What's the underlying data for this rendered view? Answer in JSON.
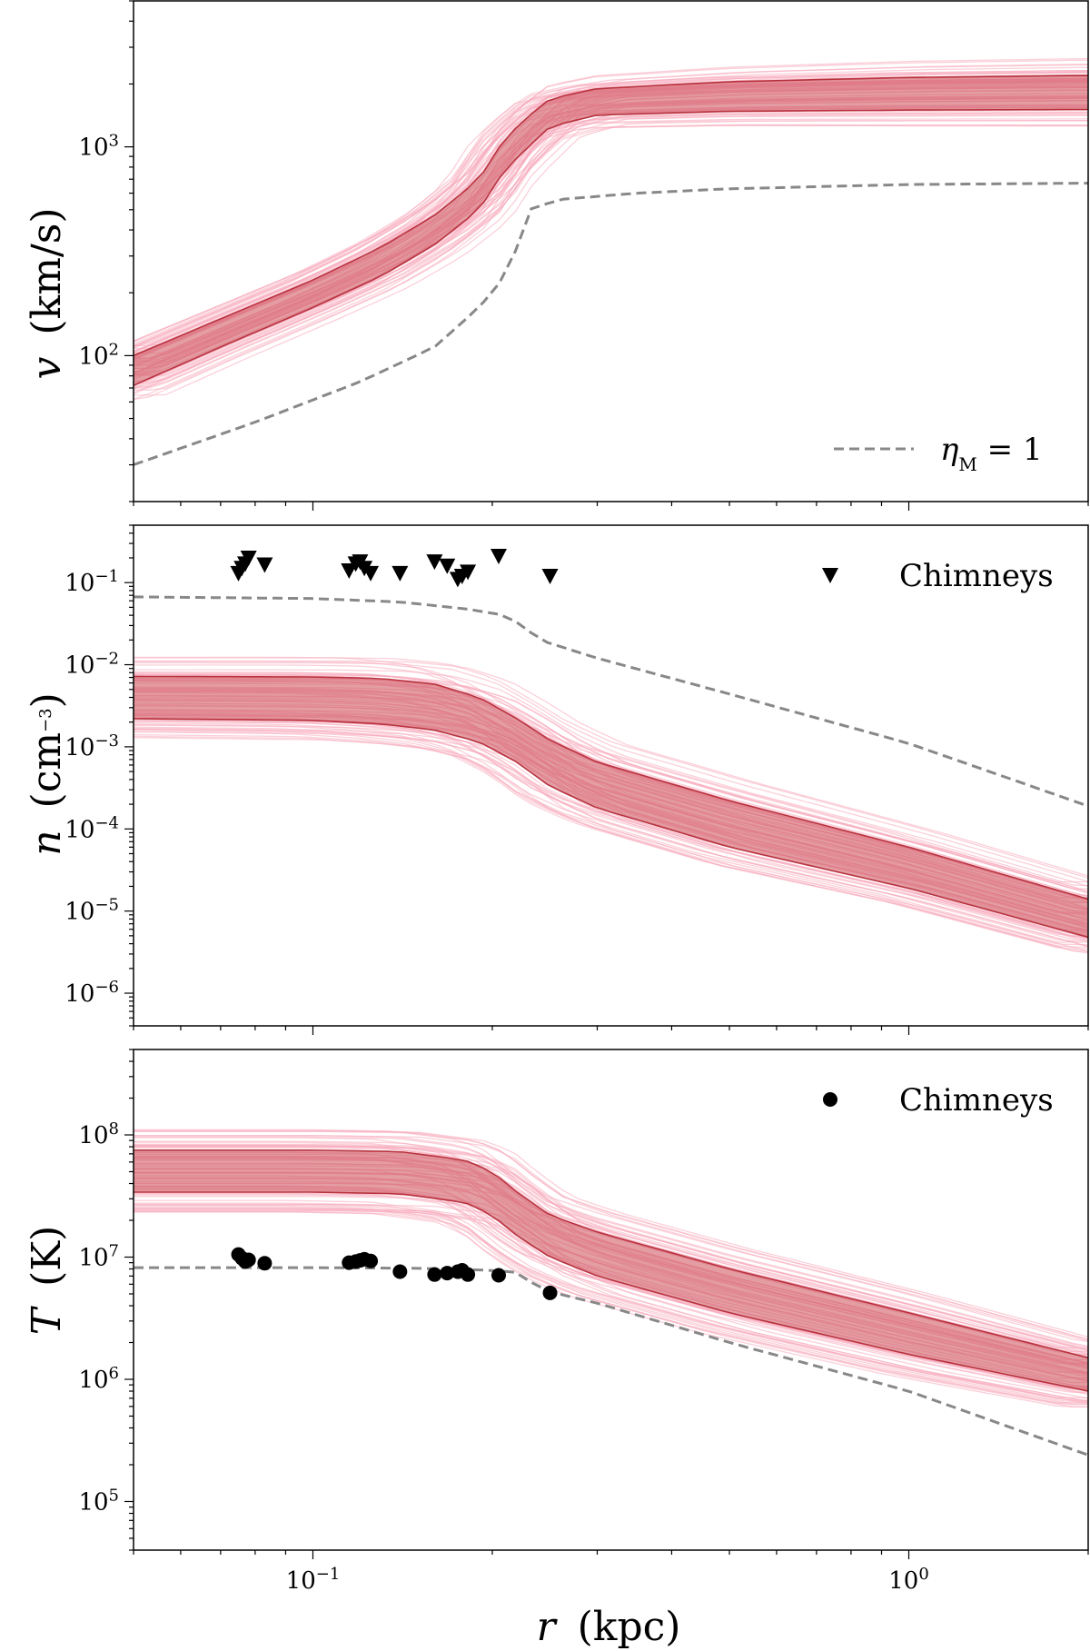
{
  "chart_data": [
    {
      "type": "line",
      "panel": "velocity",
      "ylabel_var": "v",
      "ylabel_unit": "(km/s)",
      "xlim": [
        0.05,
        2.0
      ],
      "ylim": [
        20,
        5000
      ],
      "yscale": "log",
      "xscale": "log",
      "yticks": [
        {
          "value": 100,
          "base": "10",
          "exp": "2"
        },
        {
          "value": 1000,
          "base": "10",
          "exp": "3"
        }
      ],
      "band_color": "#c9525a",
      "sample_color": "#f5a3b5",
      "band_x": [
        0.05,
        0.07,
        0.1,
        0.13,
        0.16,
        0.19,
        0.21,
        0.23,
        0.25,
        0.3,
        0.5,
        1.0,
        2.0
      ],
      "band_lower": [
        72,
        110,
        170,
        240,
        340,
        500,
        780,
        1000,
        1250,
        1420,
        1480,
        1500,
        1510
      ],
      "band_upper": [
        100,
        150,
        230,
        330,
        470,
        700,
        1100,
        1400,
        1700,
        1900,
        2050,
        2150,
        2200
      ],
      "eta_line_x": [
        0.05,
        0.08,
        0.12,
        0.16,
        0.19,
        0.21,
        0.22,
        0.23,
        0.26,
        0.35,
        0.5,
        1.0,
        2.0
      ],
      "eta_line_y": [
        30,
        48,
        75,
        110,
        170,
        240,
        330,
        500,
        560,
        600,
        630,
        660,
        670
      ],
      "legend": [
        {
          "label": "η",
          "sub": "M",
          "suffix": " = 1",
          "style": "dashed"
        }
      ]
    },
    {
      "type": "line",
      "panel": "density",
      "ylabel_var": "n",
      "ylabel_unit_pre": "(cm",
      "ylabel_unit_exp": "−3",
      "ylabel_unit_post": ")",
      "xlim": [
        0.05,
        2.0
      ],
      "ylim": [
        4e-07,
        0.5
      ],
      "yscale": "log",
      "xscale": "log",
      "yticks": [
        {
          "value": 0.1,
          "base": "10",
          "exp": "−1"
        },
        {
          "value": 0.01,
          "base": "10",
          "exp": "−2"
        },
        {
          "value": 0.001,
          "base": "10",
          "exp": "−3"
        },
        {
          "value": 0.0001,
          "base": "10",
          "exp": "−4"
        },
        {
          "value": 1e-05,
          "base": "10",
          "exp": "−5"
        },
        {
          "value": 1e-06,
          "base": "10",
          "exp": "−6"
        }
      ],
      "band_x": [
        0.05,
        0.1,
        0.13,
        0.16,
        0.19,
        0.22,
        0.25,
        0.3,
        0.5,
        1.0,
        2.0
      ],
      "band_lower": [
        0.0022,
        0.0021,
        0.0019,
        0.0016,
        0.00115,
        0.00065,
        0.00033,
        0.00018,
        6e-05,
        1.9e-05,
        4.8e-06
      ],
      "band_upper": [
        0.0072,
        0.0071,
        0.0068,
        0.0058,
        0.004,
        0.0022,
        0.0012,
        0.00065,
        0.00022,
        6e-05,
        1.4e-05
      ],
      "eta_line_x": [
        0.05,
        0.1,
        0.14,
        0.18,
        0.21,
        0.225,
        0.24,
        0.3,
        0.5,
        1.0,
        2.0
      ],
      "eta_line_y": [
        0.067,
        0.064,
        0.058,
        0.048,
        0.04,
        0.03,
        0.02,
        0.012,
        0.0044,
        0.0011,
        0.00019
      ],
      "markers_x": [
        0.075,
        0.076,
        0.077,
        0.078,
        0.083,
        0.115,
        0.118,
        0.12,
        0.122,
        0.125,
        0.14,
        0.16,
        0.168,
        0.175,
        0.178,
        0.182,
        0.205,
        0.25
      ],
      "markers_y": [
        0.13,
        0.15,
        0.17,
        0.2,
        0.165,
        0.14,
        0.17,
        0.18,
        0.15,
        0.13,
        0.13,
        0.18,
        0.16,
        0.11,
        0.12,
        0.135,
        0.21,
        0.12
      ],
      "legend": [
        {
          "label": "Chimneys",
          "style": "triangle"
        }
      ]
    },
    {
      "type": "line",
      "panel": "temperature",
      "ylabel_var": "T",
      "ylabel_unit": "(K)",
      "xlabel_var": "r",
      "xlabel_unit": "(kpc)",
      "xlim": [
        0.05,
        2.0
      ],
      "ylim": [
        40000,
        500000000
      ],
      "yscale": "log",
      "xscale": "log",
      "xticks": [
        {
          "value": 0.1,
          "base": "10",
          "exp": "−1"
        },
        {
          "value": 1.0,
          "base": "10",
          "exp": "0"
        }
      ],
      "yticks": [
        {
          "value": 100000000,
          "base": "10",
          "exp": "8"
        },
        {
          "value": 10000000,
          "base": "10",
          "exp": "7"
        },
        {
          "value": 1000000,
          "base": "10",
          "exp": "6"
        },
        {
          "value": 100000,
          "base": "10",
          "exp": "5"
        }
      ],
      "band_x": [
        0.05,
        0.1,
        0.14,
        0.18,
        0.2,
        0.22,
        0.25,
        0.3,
        0.5,
        1.0,
        2.0
      ],
      "band_lower": [
        34000000,
        34000000,
        33000000,
        28000000,
        22000000,
        15000000,
        10000000,
        7000000,
        3500000,
        1600000,
        800000
      ],
      "band_upper": [
        75000000,
        75000000,
        73000000,
        62000000,
        50000000,
        34000000,
        22000000,
        16000000,
        8000000,
        3500000,
        1500000
      ],
      "eta_line_x": [
        0.05,
        0.1,
        0.15,
        0.2,
        0.22,
        0.235,
        0.25,
        0.3,
        0.5,
        1.0,
        2.0
      ],
      "eta_line_y": [
        8200000,
        8200000,
        8100000,
        7800000,
        7500000,
        6000000,
        5200000,
        4200000,
        2000000,
        800000,
        240000
      ],
      "markers_x": [
        0.075,
        0.076,
        0.077,
        0.078,
        0.083,
        0.115,
        0.118,
        0.12,
        0.122,
        0.125,
        0.14,
        0.16,
        0.168,
        0.175,
        0.178,
        0.182,
        0.205,
        0.25
      ],
      "markers_y": [
        10500000,
        9800000,
        9200000,
        9500000,
        8900000,
        9000000,
        9200000,
        9400000,
        9600000,
        9300000,
        7600000,
        7200000,
        7400000,
        7600000,
        7800000,
        7200000,
        7100000,
        5100000
      ],
      "legend": [
        {
          "label": "Chimneys",
          "style": "circle"
        }
      ]
    }
  ]
}
